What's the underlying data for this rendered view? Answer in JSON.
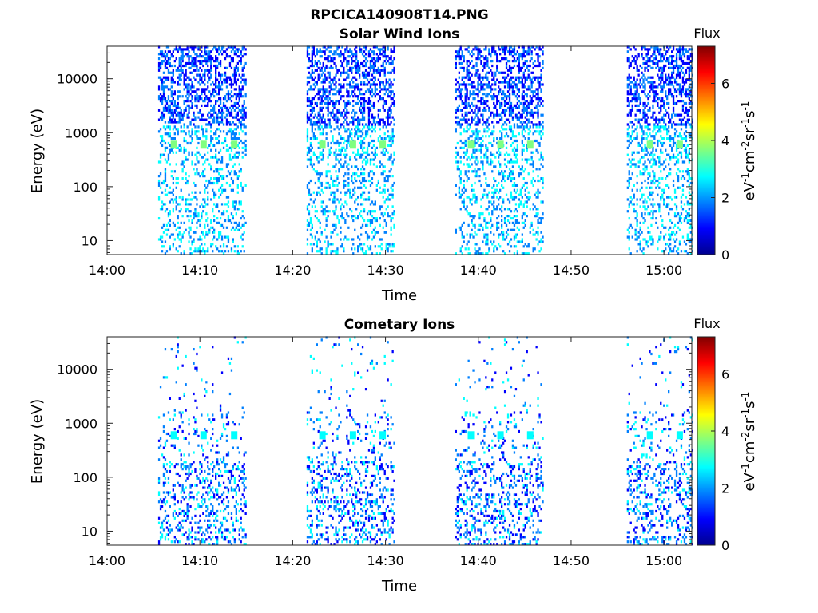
{
  "figure": {
    "title": "RPCICA140908T14.PNG"
  },
  "colormap": [
    "#00008f",
    "#0000ff",
    "#0080ff",
    "#00ffff",
    "#80ff80",
    "#ffff00",
    "#ff8000",
    "#ff0000",
    "#800000"
  ],
  "chart_data": [
    {
      "type": "heatmap",
      "title": "Solar Wind Ions",
      "xlabel": "Time",
      "ylabel": "Energy (eV)",
      "x_ticks": [
        "14:00",
        "14:10",
        "14:20",
        "14:30",
        "14:40",
        "14:50",
        "15:00"
      ],
      "xlim": [
        "14:00",
        "15:03"
      ],
      "y_scale": "log",
      "y_ticks": [
        "10",
        "100",
        "1000",
        "10000"
      ],
      "ylim": [
        5.5,
        40000
      ],
      "colorbar": {
        "title": "Flux",
        "label": "eV-1cm-2sr-1s-1",
        "ticks": [
          "0",
          "2",
          "4",
          "6"
        ],
        "range": [
          0,
          7.3
        ]
      },
      "observation_blocks": [
        {
          "start": "14:05.5",
          "end": "14:15.0"
        },
        {
          "start": "14:21.5",
          "end": "14:31.0"
        },
        {
          "start": "14:37.5",
          "end": "14:47.0"
        },
        {
          "start": "14:56.0",
          "end": "15:03.0"
        }
      ],
      "peaks": [
        {
          "time": "14:07.2",
          "energy": 600,
          "flux": 3.8
        },
        {
          "time": "14:10.4",
          "energy": 600,
          "flux": 3.8
        },
        {
          "time": "14:13.7",
          "energy": 600,
          "flux": 3.8
        },
        {
          "time": "14:23.2",
          "energy": 600,
          "flux": 3.8
        },
        {
          "time": "14:26.5",
          "energy": 600,
          "flux": 3.8
        },
        {
          "time": "14:29.7",
          "energy": 600,
          "flux": 3.8
        },
        {
          "time": "14:39.2",
          "energy": 600,
          "flux": 3.8
        },
        {
          "time": "14:42.4",
          "energy": 600,
          "flux": 3.8
        },
        {
          "time": "14:45.6",
          "energy": 600,
          "flux": 3.8
        },
        {
          "time": "14:58.5",
          "energy": 600,
          "flux": 3.8
        },
        {
          "time": "15:01.7",
          "energy": 600,
          "flux": 3.8
        }
      ]
    },
    {
      "type": "heatmap",
      "title": "Cometary Ions",
      "xlabel": "Time",
      "ylabel": "Energy (eV)",
      "x_ticks": [
        "14:00",
        "14:10",
        "14:20",
        "14:30",
        "14:40",
        "14:50",
        "15:00"
      ],
      "xlim": [
        "14:00",
        "15:03"
      ],
      "y_scale": "log",
      "y_ticks": [
        "10",
        "100",
        "1000",
        "10000"
      ],
      "ylim": [
        5.5,
        40000
      ],
      "colorbar": {
        "title": "Flux",
        "label": "eV-1cm-2sr-1s-1",
        "ticks": [
          "0",
          "2",
          "4",
          "6"
        ],
        "range": [
          0,
          7.3
        ]
      },
      "observation_blocks": [
        {
          "start": "14:05.5",
          "end": "14:15.0"
        },
        {
          "start": "14:21.5",
          "end": "14:31.0"
        },
        {
          "start": "14:37.5",
          "end": "14:47.0"
        },
        {
          "start": "14:56.0",
          "end": "15:03.0"
        }
      ],
      "peaks": [
        {
          "time": "14:07.2",
          "energy": 600,
          "flux": 2.3
        },
        {
          "time": "14:10.4",
          "energy": 600,
          "flux": 2.3
        },
        {
          "time": "14:13.7",
          "energy": 600,
          "flux": 2.3
        },
        {
          "time": "14:23.2",
          "energy": 600,
          "flux": 2.3
        },
        {
          "time": "14:26.5",
          "energy": 600,
          "flux": 2.3
        },
        {
          "time": "14:29.7",
          "energy": 600,
          "flux": 2.3
        },
        {
          "time": "14:39.2",
          "energy": 600,
          "flux": 2.3
        },
        {
          "time": "14:42.4",
          "energy": 600,
          "flux": 2.3
        },
        {
          "time": "14:45.6",
          "energy": 600,
          "flux": 2.3
        },
        {
          "time": "14:58.5",
          "energy": 600,
          "flux": 2.3
        },
        {
          "time": "15:01.7",
          "energy": 600,
          "flux": 2.3
        }
      ]
    }
  ]
}
